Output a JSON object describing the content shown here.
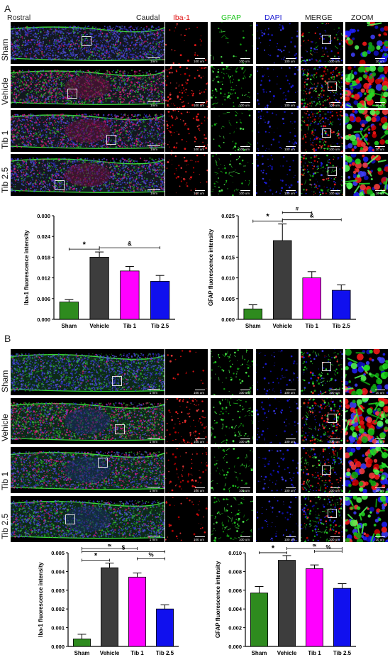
{
  "panel_a": {
    "letter": "A",
    "headers": {
      "rostral": "Rostral",
      "caudal": "Caudal",
      "iba1": "Iba-1",
      "gfap": "GFAP",
      "dapi": "DAPI",
      "merge": "MERGE",
      "zoom": "ZOOM"
    },
    "rows": [
      {
        "label": "Sham",
        "tone": "sham"
      },
      {
        "label": "Vehicle",
        "tone": "vehicle"
      },
      {
        "label": "Tib 1",
        "tone": "tib1"
      },
      {
        "label": "Tib 2.5",
        "tone": "tib25"
      }
    ],
    "scale_labels": {
      "overview": "1mm",
      "channel": "100 um",
      "zoom": "10 um"
    }
  },
  "panel_b": {
    "letter": "B",
    "rows": [
      {
        "label": "Sham",
        "tone": "shamB"
      },
      {
        "label": "Vehicle",
        "tone": "vehicleB"
      },
      {
        "label": "Tib 1",
        "tone": "tib1B"
      },
      {
        "label": "Tib 2.5",
        "tone": "tib25B"
      }
    ],
    "scale_labels": {
      "overview": "1 mm",
      "channel": "100 um",
      "zoom": "10 um"
    }
  },
  "colors": {
    "sham": "#2e8b1e",
    "vehicle": "#3d3d3d",
    "tib1": "#ff00ff",
    "tib25": "#1010ee",
    "iba1_text": "#e01010",
    "gfap_text": "#17c417",
    "dapi_text": "#1515d0"
  },
  "chart_data": [
    {
      "type": "bar",
      "panel": "A",
      "categories": [
        "Sham",
        "Vehicle",
        "Tib 1",
        "Tib 2.5"
      ],
      "values": [
        0.005,
        0.018,
        0.014,
        0.011
      ],
      "errors": [
        0.0007,
        0.0015,
        0.0013,
        0.0017
      ],
      "ylabel": "Iba-1 fluorescence intensity",
      "ylim": [
        0,
        0.03
      ],
      "yticks": [
        "0.000",
        "0.006",
        "0.012",
        "0.018",
        "0.024",
        "0.030"
      ],
      "significance": [
        {
          "symbol": "*",
          "from": 0,
          "to": 1
        },
        {
          "symbol": "&",
          "from": 1,
          "to": 3
        }
      ]
    },
    {
      "type": "bar",
      "panel": "A",
      "categories": [
        "Sham",
        "Vehicle",
        "Tib 1",
        "Tib 2.5"
      ],
      "values": [
        0.0025,
        0.019,
        0.01,
        0.007
      ],
      "errors": [
        0.001,
        0.004,
        0.0015,
        0.0013
      ],
      "ylabel": "GFAP fluorescence intensity",
      "ylim": [
        0,
        0.025
      ],
      "yticks": [
        "0.000",
        "0.005",
        "0.010",
        "0.015",
        "0.020",
        "0.025"
      ],
      "significance": [
        {
          "symbol": "*",
          "from": 0,
          "to": 1
        },
        {
          "symbol": "#",
          "from": 1,
          "to": 2
        },
        {
          "symbol": "&",
          "from": 1,
          "to": 3
        }
      ]
    },
    {
      "type": "bar",
      "panel": "B",
      "categories": [
        "Sham",
        "Vehicle",
        "Tib 1",
        "Tib 2.5"
      ],
      "values": [
        0.0004,
        0.0042,
        0.0037,
        0.002
      ],
      "errors": [
        0.00025,
        0.00025,
        0.00022,
        0.00022
      ],
      "ylabel": "Iba-1 fluorescence intensity",
      "ylim": [
        0,
        0.005
      ],
      "yticks": [
        "0.000",
        "0.001",
        "0.002",
        "0.003",
        "0.004",
        "0.005"
      ],
      "significance": [
        {
          "symbol": "*",
          "from": 0,
          "to": 1
        },
        {
          "symbol": "&",
          "from": 0,
          "to": 2
        },
        {
          "symbol": "$",
          "from": 0,
          "to": 3
        },
        {
          "symbol": "%",
          "from": 2,
          "to": 3
        }
      ]
    },
    {
      "type": "bar",
      "panel": "B",
      "categories": [
        "Sham",
        "Vehicle",
        "Tib 1",
        "Tib 2.5"
      ],
      "values": [
        0.0057,
        0.0092,
        0.0083,
        0.0062
      ],
      "errors": [
        0.0007,
        0.0005,
        0.0004,
        0.0005
      ],
      "ylabel": "GFAP fluorescence intensity",
      "ylim": [
        0,
        0.01
      ],
      "yticks": [
        "0.000",
        "0.002",
        "0.004",
        "0.006",
        "0.008",
        "0.010"
      ],
      "significance": [
        {
          "symbol": "*",
          "from": 0,
          "to": 1
        },
        {
          "symbol": "&",
          "from": 1,
          "to": 3
        },
        {
          "symbol": "%",
          "from": 2,
          "to": 3
        }
      ]
    }
  ]
}
